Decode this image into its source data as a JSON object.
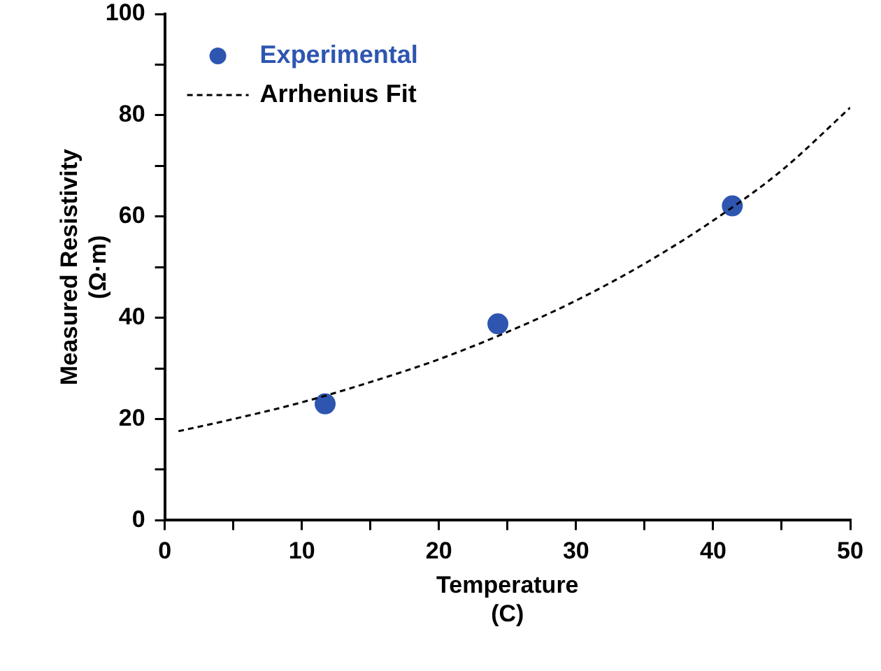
{
  "chart_data": {
    "type": "scatter",
    "xlabel": "Temperature\n(C)",
    "ylabel": "Measured Resistivity\n(Ω·m)",
    "xlim": [
      0,
      50
    ],
    "ylim": [
      0,
      100
    ],
    "xticks": [
      0,
      {
        "value": 5,
        "label": null
      },
      10,
      {
        "value": 15,
        "label": null
      },
      20,
      {
        "value": 25,
        "label": null
      },
      30,
      {
        "value": 35,
        "label": null
      },
      40,
      {
        "value": 45,
        "label": null
      },
      50
    ],
    "yticks": [
      0,
      {
        "value": 10,
        "label": null
      },
      20,
      {
        "value": 30,
        "label": null
      },
      40,
      {
        "value": 50,
        "label": null
      },
      60,
      {
        "value": 70,
        "label": null
      },
      80,
      {
        "value": 90,
        "label": null
      },
      100
    ],
    "grid": false,
    "legend": "top left",
    "marker": "circle",
    "series": [
      {
        "name": "Experimental",
        "type": "scatter",
        "color": "#2e56b0",
        "x": [
          11.7,
          24.3,
          41.4
        ],
        "values": [
          23.0,
          38.8,
          62.1
        ]
      },
      {
        "name": "Arrhenius Fit",
        "type": "line",
        "color": "#000000",
        "line_style": "dashed",
        "marker": "none",
        "x": [
          1,
          5,
          10,
          15,
          20,
          25,
          30,
          35,
          40,
          45,
          50
        ],
        "values": [
          17.6,
          20.0,
          23.3,
          27.3,
          31.8,
          37.2,
          43.4,
          50.7,
          59.2,
          69.1,
          81.5
        ]
      }
    ]
  }
}
